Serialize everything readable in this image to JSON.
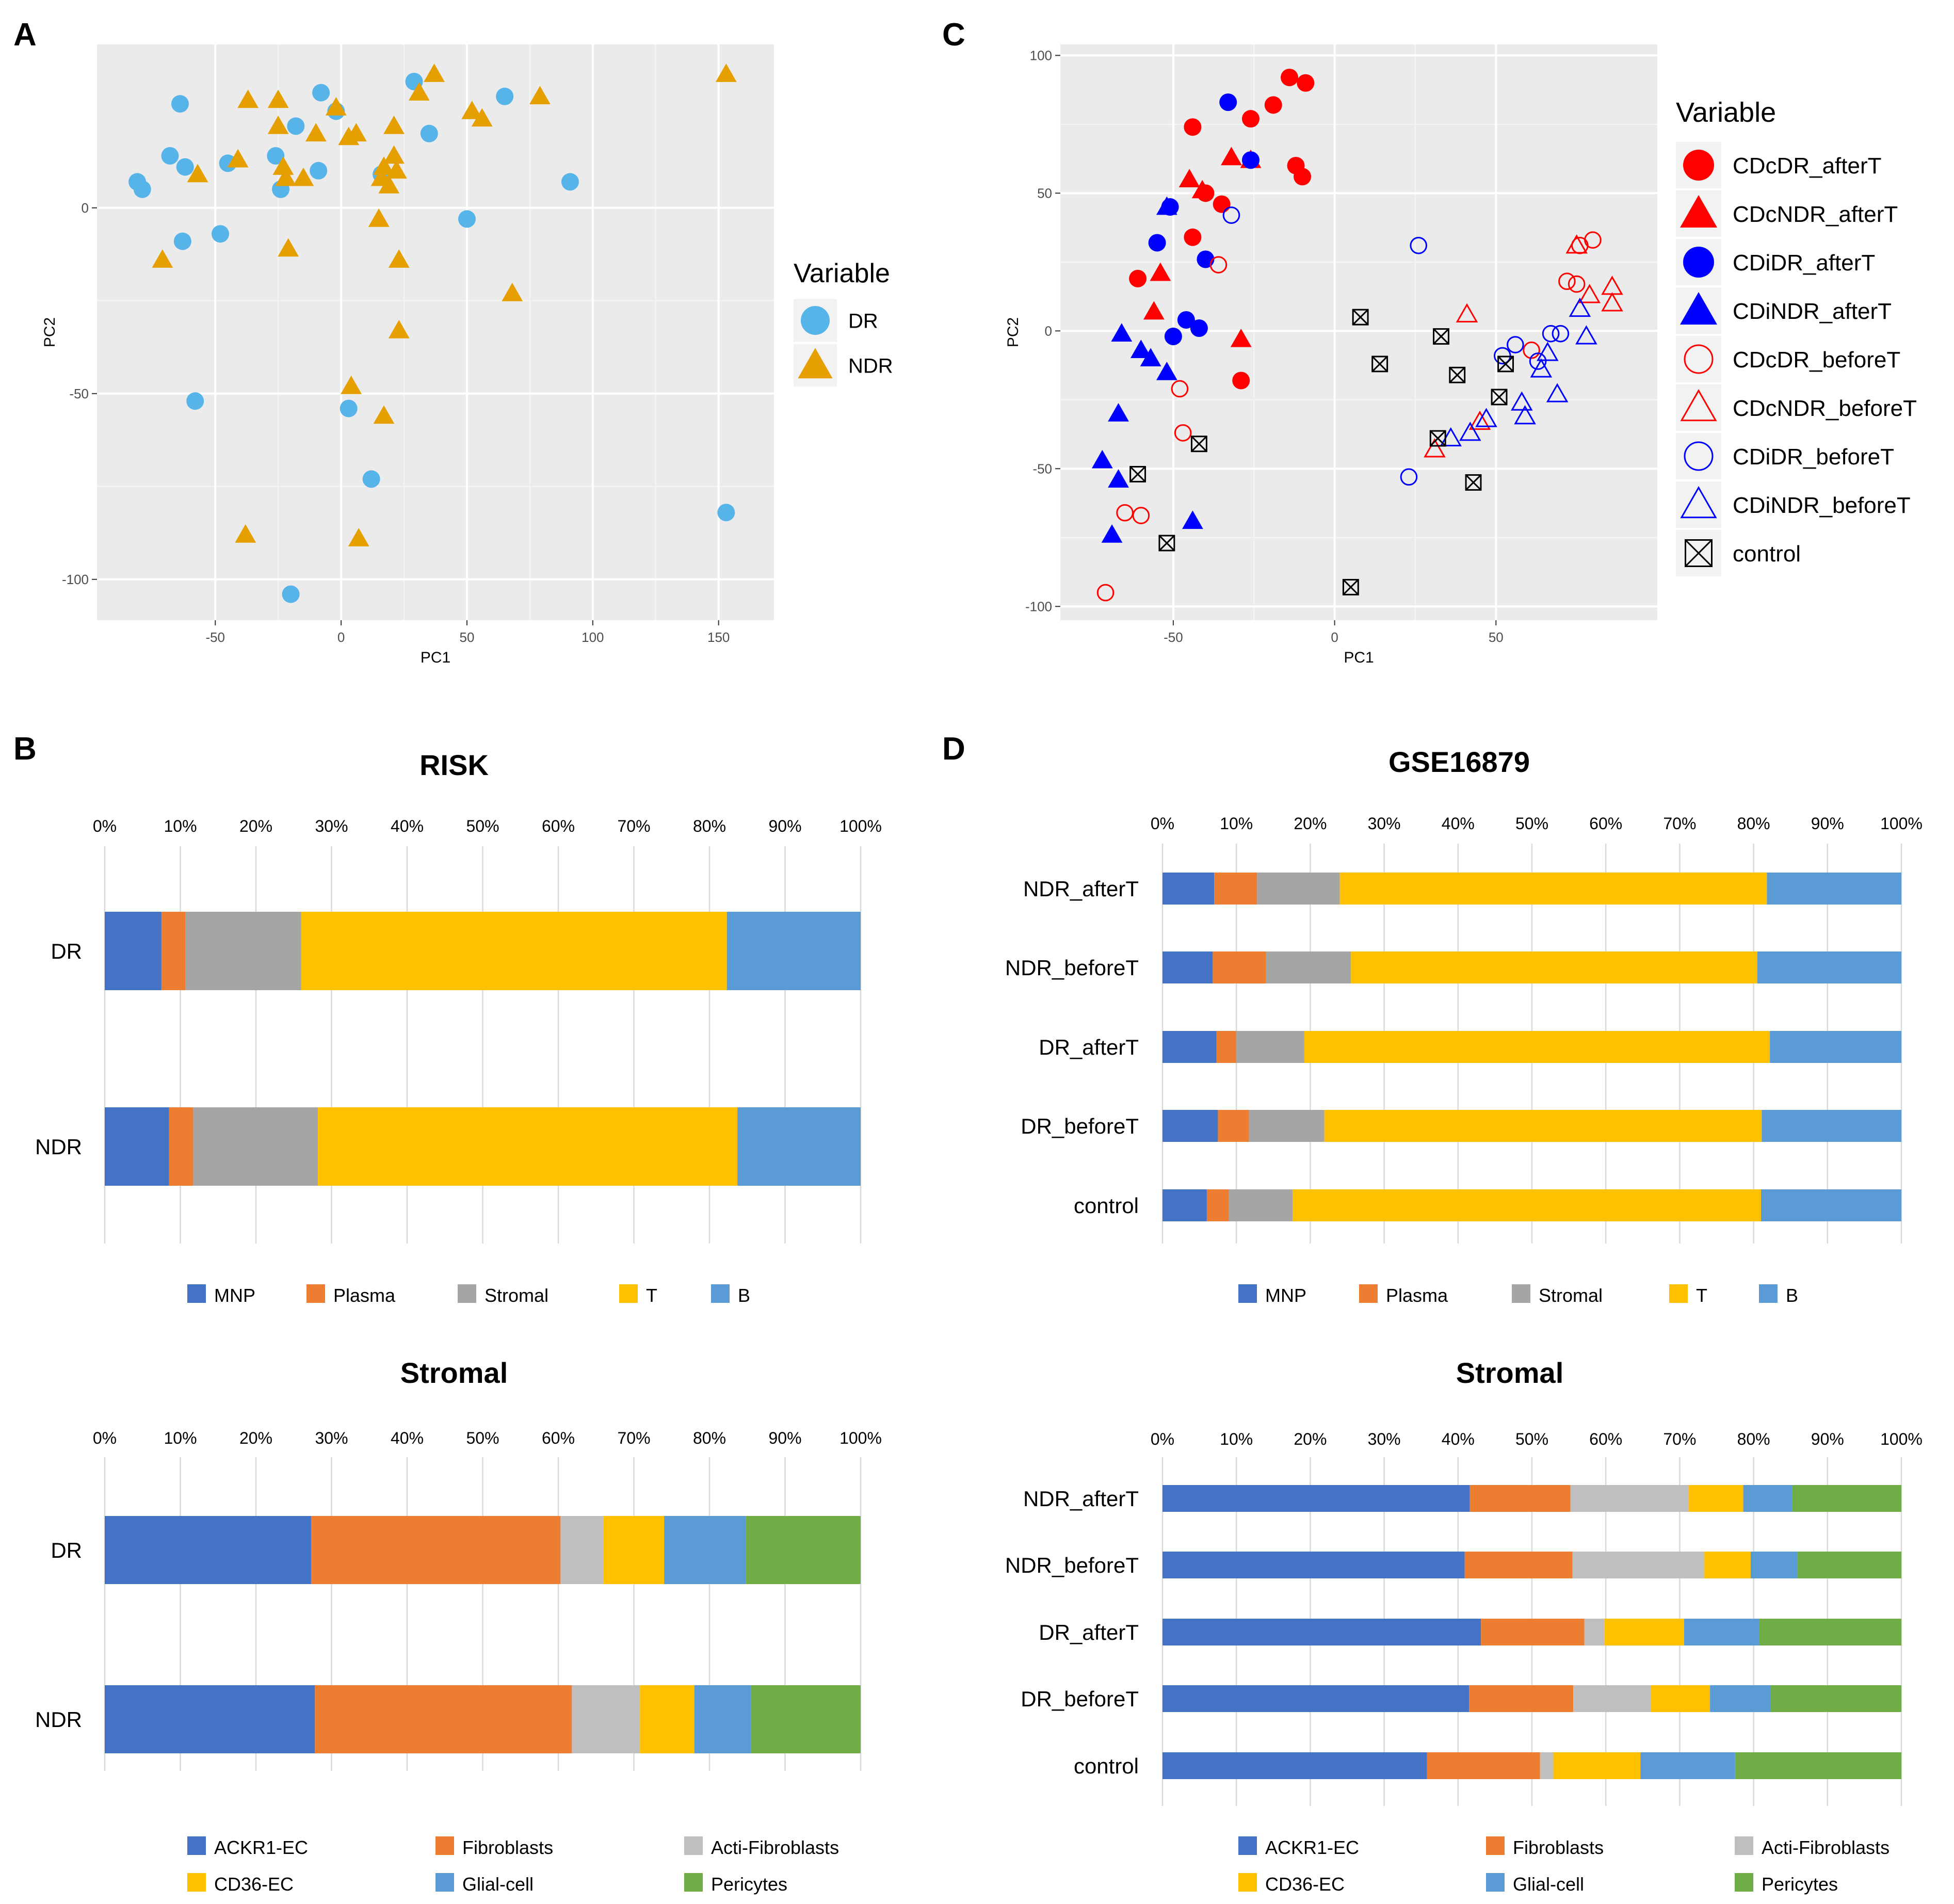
{
  "panels": {
    "A": "A",
    "B": "B",
    "C": "C",
    "D": "D"
  },
  "colors": {
    "dr_point": "#56B4E9",
    "ndr_point": "#E69F00",
    "cd_red": "#FF0000",
    "ci_blue": "#0000FF",
    "control": "#222222",
    "pca_bg": "#EBEBEB",
    "MNP": "#4472C4",
    "Plasma": "#ED7D31",
    "Stromal": "#A5A5A5",
    "T": "#FFC000",
    "B": "#5B9BD5",
    "ACKR1-EC": "#4472C4",
    "Fibroblasts": "#ED7D31",
    "Acti-Fibroblasts": "#BFBFBF",
    "CD36-EC": "#FFC000",
    "Glial-cell": "#5B9BD5",
    "Pericytes": "#70AD47"
  },
  "chart_data": [
    {
      "id": "A",
      "type": "scatter",
      "title": "",
      "xlabel": "PC1",
      "ylabel": "PC2",
      "xlim": [
        -97,
        172
      ],
      "ylim": [
        -111,
        44
      ],
      "xticks": [
        -50,
        0,
        50,
        100,
        150
      ],
      "yticks": [
        -100,
        -50,
        0
      ],
      "xtick_labels": [
        "-50",
        "0",
        "50",
        "100",
        "150"
      ],
      "ytick_labels": [
        "-100",
        "-50",
        "0"
      ],
      "grid": true,
      "legend_title": "Variable",
      "legend_position": "right",
      "series": [
        {
          "name": "DR",
          "marker": "circle",
          "points": [
            [
              -81,
              7
            ],
            [
              -79,
              5
            ],
            [
              -64,
              28
            ],
            [
              -68,
              14
            ],
            [
              -62,
              11
            ],
            [
              -45,
              12
            ],
            [
              -63,
              -9
            ],
            [
              -48,
              -7
            ],
            [
              -58,
              -52
            ],
            [
              -26,
              14
            ],
            [
              -24,
              5
            ],
            [
              -18,
              22
            ],
            [
              -8,
              31
            ],
            [
              -2,
              26
            ],
            [
              -9,
              10
            ],
            [
              29,
              34
            ],
            [
              16,
              9
            ],
            [
              35,
              20
            ],
            [
              65,
              30
            ],
            [
              91,
              7
            ],
            [
              50,
              -3
            ],
            [
              3,
              -54
            ],
            [
              12,
              -73
            ],
            [
              -20,
              -104
            ],
            [
              153,
              -82
            ]
          ]
        },
        {
          "name": "NDR",
          "marker": "triangle",
          "points": [
            [
              -71,
              -14
            ],
            [
              -57,
              9
            ],
            [
              -41,
              13
            ],
            [
              -37,
              29
            ],
            [
              -25,
              29
            ],
            [
              -25,
              22
            ],
            [
              -23,
              11
            ],
            [
              -22,
              8
            ],
            [
              -21,
              -11
            ],
            [
              -15,
              8
            ],
            [
              -10,
              20
            ],
            [
              -2,
              27
            ],
            [
              3,
              19
            ],
            [
              6,
              20
            ],
            [
              15,
              -3
            ],
            [
              16,
              8
            ],
            [
              17,
              11
            ],
            [
              19,
              6
            ],
            [
              21,
              22
            ],
            [
              21,
              14
            ],
            [
              22,
              10
            ],
            [
              23,
              -14
            ],
            [
              23,
              -33
            ],
            [
              31,
              31
            ],
            [
              37,
              36
            ],
            [
              52,
              26
            ],
            [
              56,
              24
            ],
            [
              68,
              -23
            ],
            [
              79,
              30
            ],
            [
              153,
              36
            ],
            [
              4,
              -48
            ],
            [
              17,
              -56
            ],
            [
              -38,
              -88
            ],
            [
              7,
              -89
            ]
          ]
        }
      ]
    },
    {
      "id": "C",
      "type": "scatter",
      "title": "",
      "xlabel": "PC1",
      "ylabel": "PC2",
      "xlim": [
        -85,
        100
      ],
      "ylim": [
        -105,
        104
      ],
      "xticks": [
        -50,
        0,
        50
      ],
      "yticks": [
        -100,
        -50,
        0,
        50,
        100
      ],
      "xtick_labels": [
        "-50",
        "0",
        "50"
      ],
      "ytick_labels": [
        "-100",
        "-50",
        "0",
        "50",
        "100"
      ],
      "grid": true,
      "legend_title": "Variable",
      "legend_position": "right",
      "series": [
        {
          "name": "CDcDR_afterT",
          "marker": "circle-filled",
          "color": "#FF0000",
          "points": [
            [
              -14,
              92
            ],
            [
              -9,
              90
            ],
            [
              -19,
              82
            ],
            [
              -26,
              77
            ],
            [
              -44,
              74
            ],
            [
              -12,
              60
            ],
            [
              -10,
              56
            ],
            [
              -40,
              50
            ],
            [
              -35,
              46
            ],
            [
              -44,
              34
            ],
            [
              -61,
              19
            ],
            [
              -29,
              -18
            ]
          ]
        },
        {
          "name": "CDcNDR_afterT",
          "marker": "triangle-filled",
          "color": "#FF0000",
          "points": [
            [
              -32,
              63
            ],
            [
              -26,
              62
            ],
            [
              -45,
              55
            ],
            [
              -41,
              51
            ],
            [
              -54,
              21
            ],
            [
              -56,
              7
            ],
            [
              -29,
              -3
            ]
          ]
        },
        {
          "name": "CDiDR_afterT",
          "marker": "circle-filled",
          "color": "#0000FF",
          "points": [
            [
              -33,
              83
            ],
            [
              -26,
              62
            ],
            [
              -51,
              45
            ],
            [
              -55,
              32
            ],
            [
              -40,
              26
            ],
            [
              -46,
              4
            ],
            [
              -42,
              1
            ],
            [
              -50,
              -2
            ]
          ]
        },
        {
          "name": "CDiNDR_afterT",
          "marker": "triangle-filled",
          "color": "#0000FF",
          "points": [
            [
              -52,
              45
            ],
            [
              -66,
              -1
            ],
            [
              -60,
              -7
            ],
            [
              -57,
              -10
            ],
            [
              -52,
              -15
            ],
            [
              -67,
              -30
            ],
            [
              -67,
              -54
            ],
            [
              -72,
              -47
            ],
            [
              -44,
              -69
            ],
            [
              -69,
              -74
            ]
          ]
        },
        {
          "name": "CDcDR_beforeT",
          "marker": "circle-open",
          "color": "#FF0000",
          "points": [
            [
              -36,
              24
            ],
            [
              -48,
              -21
            ],
            [
              -47,
              -37
            ],
            [
              -65,
              -66
            ],
            [
              -60,
              -67
            ],
            [
              -71,
              -95
            ],
            [
              61,
              -7
            ],
            [
              72,
              18
            ],
            [
              75,
              17
            ],
            [
              80,
              33
            ],
            [
              76,
              31
            ]
          ]
        },
        {
          "name": "CDcNDR_beforeT",
          "marker": "triangle-open",
          "color": "#FF0000",
          "points": [
            [
              41,
              6
            ],
            [
              31,
              -43
            ],
            [
              45,
              -33
            ],
            [
              75,
              31
            ],
            [
              79,
              13
            ],
            [
              86,
              16
            ],
            [
              86,
              10
            ]
          ]
        },
        {
          "name": "CDiDR_beforeT",
          "marker": "circle-open",
          "color": "#0000FF",
          "points": [
            [
              -32,
              42
            ],
            [
              26,
              31
            ],
            [
              23,
              -53
            ],
            [
              52,
              -9
            ],
            [
              56,
              -5
            ],
            [
              63,
              -11
            ],
            [
              67,
              -1
            ],
            [
              70,
              -1
            ]
          ]
        },
        {
          "name": "CDiNDR_beforeT",
          "marker": "triangle-open",
          "color": "#0000FF",
          "points": [
            [
              36,
              -39
            ],
            [
              42,
              -37
            ],
            [
              47,
              -32
            ],
            [
              58,
              -26
            ],
            [
              59,
              -31
            ],
            [
              64,
              -14
            ],
            [
              66,
              -8
            ],
            [
              69,
              -23
            ],
            [
              78,
              -2
            ],
            [
              76,
              8
            ]
          ]
        },
        {
          "name": "control",
          "marker": "boxed-x",
          "color": "#000000",
          "points": [
            [
              8,
              5
            ],
            [
              33,
              -2
            ],
            [
              14,
              -12
            ],
            [
              38,
              -16
            ],
            [
              53,
              -12
            ],
            [
              51,
              -24
            ],
            [
              32,
              -39
            ],
            [
              -42,
              -41
            ],
            [
              -61,
              -52
            ],
            [
              43,
              -55
            ],
            [
              -52,
              -77
            ],
            [
              5,
              -93
            ]
          ]
        }
      ]
    },
    {
      "id": "B-risk",
      "type": "bar",
      "orientation": "horizontal-stacked-100",
      "title": "RISK",
      "categories": [
        "DR",
        "NDR"
      ],
      "xticks": [
        "0%",
        "10%",
        "20%",
        "30%",
        "40%",
        "50%",
        "60%",
        "70%",
        "80%",
        "90%",
        "100%"
      ],
      "series": [
        {
          "name": "MNP",
          "values": [
            7.5,
            8.5
          ]
        },
        {
          "name": "Plasma",
          "values": [
            3.2,
            3.2
          ]
        },
        {
          "name": "Stromal",
          "values": [
            15.3,
            16.5
          ]
        },
        {
          "name": "T",
          "values": [
            56.3,
            55.5
          ]
        },
        {
          "name": "B",
          "values": [
            17.7,
            16.3
          ]
        }
      ],
      "legend": [
        "MNP",
        "Plasma",
        "Stromal",
        "T",
        "B"
      ]
    },
    {
      "id": "B-stromal",
      "type": "bar",
      "orientation": "horizontal-stacked-100",
      "title": "Stromal",
      "categories": [
        "DR",
        "NDR"
      ],
      "xticks": [
        "0%",
        "10%",
        "20%",
        "30%",
        "40%",
        "50%",
        "60%",
        "70%",
        "80%",
        "90%",
        "100%"
      ],
      "series": [
        {
          "name": "ACKR1-EC",
          "values": [
            27.3,
            27.8
          ]
        },
        {
          "name": "Fibroblasts",
          "values": [
            33,
            34
          ]
        },
        {
          "name": "Acti-Fibroblasts",
          "values": [
            5.7,
            9
          ]
        },
        {
          "name": "CD36-EC",
          "values": [
            8,
            7.2
          ]
        },
        {
          "name": "Glial-cell",
          "values": [
            10.8,
            7.5
          ]
        },
        {
          "name": "Pericytes",
          "values": [
            15.2,
            14.5
          ]
        }
      ],
      "legend": [
        "ACKR1-EC",
        "Fibroblasts",
        "Acti-Fibroblasts",
        "CD36-EC",
        "Glial-cell",
        "Pericytes"
      ]
    },
    {
      "id": "D-gse",
      "type": "bar",
      "orientation": "horizontal-stacked-100",
      "title": "GSE16879",
      "categories": [
        "NDR_afterT",
        "NDR_beforeT",
        "DR_afterT",
        "DR_beforeT",
        "control"
      ],
      "xticks": [
        "0%",
        "10%",
        "20%",
        "30%",
        "40%",
        "50%",
        "60%",
        "70%",
        "80%",
        "90%",
        "100%"
      ],
      "series": [
        {
          "name": "MNP",
          "values": [
            7,
            6.8,
            7.3,
            7.5,
            6
          ]
        },
        {
          "name": "Plasma",
          "values": [
            5.8,
            7.2,
            2.7,
            4.2,
            3
          ]
        },
        {
          "name": "Stromal",
          "values": [
            11.2,
            11.5,
            9.2,
            10.2,
            8.6
          ]
        },
        {
          "name": "T",
          "values": [
            57.8,
            55,
            63,
            59.2,
            63.4
          ]
        },
        {
          "name": "B",
          "values": [
            18.2,
            19.5,
            17.8,
            18.9,
            19
          ]
        }
      ],
      "legend": [
        "MNP",
        "Plasma",
        "Stromal",
        "T",
        "B"
      ]
    },
    {
      "id": "D-stromal",
      "type": "bar",
      "orientation": "horizontal-stacked-100",
      "title": "Stromal",
      "categories": [
        "NDR_afterT",
        "NDR_beforeT",
        "DR_afterT",
        "DR_beforeT",
        "control"
      ],
      "xticks": [
        "0%",
        "10%",
        "20%",
        "30%",
        "40%",
        "50%",
        "60%",
        "70%",
        "80%",
        "90%",
        "100%"
      ],
      "series": [
        {
          "name": "ACKR1-EC",
          "values": [
            41.6,
            40.9,
            43.1,
            41.5,
            35.8
          ]
        },
        {
          "name": "Fibroblasts",
          "values": [
            13.6,
            14.6,
            14,
            14.1,
            15.3
          ]
        },
        {
          "name": "Acti-Fibroblasts",
          "values": [
            16,
            17.8,
            2.7,
            10.5,
            1.8
          ]
        },
        {
          "name": "CD36-EC",
          "values": [
            7.4,
            6.3,
            10.8,
            8,
            11.8
          ]
        },
        {
          "name": "Glial-cell",
          "values": [
            6.6,
            6.3,
            10.2,
            8.2,
            12.8
          ]
        },
        {
          "name": "Pericytes",
          "values": [
            14.8,
            14.1,
            19.2,
            17.7,
            22.5
          ]
        }
      ],
      "legend": [
        "ACKR1-EC",
        "Fibroblasts",
        "Acti-Fibroblasts",
        "CD36-EC",
        "Glial-cell",
        "Pericytes"
      ]
    }
  ]
}
